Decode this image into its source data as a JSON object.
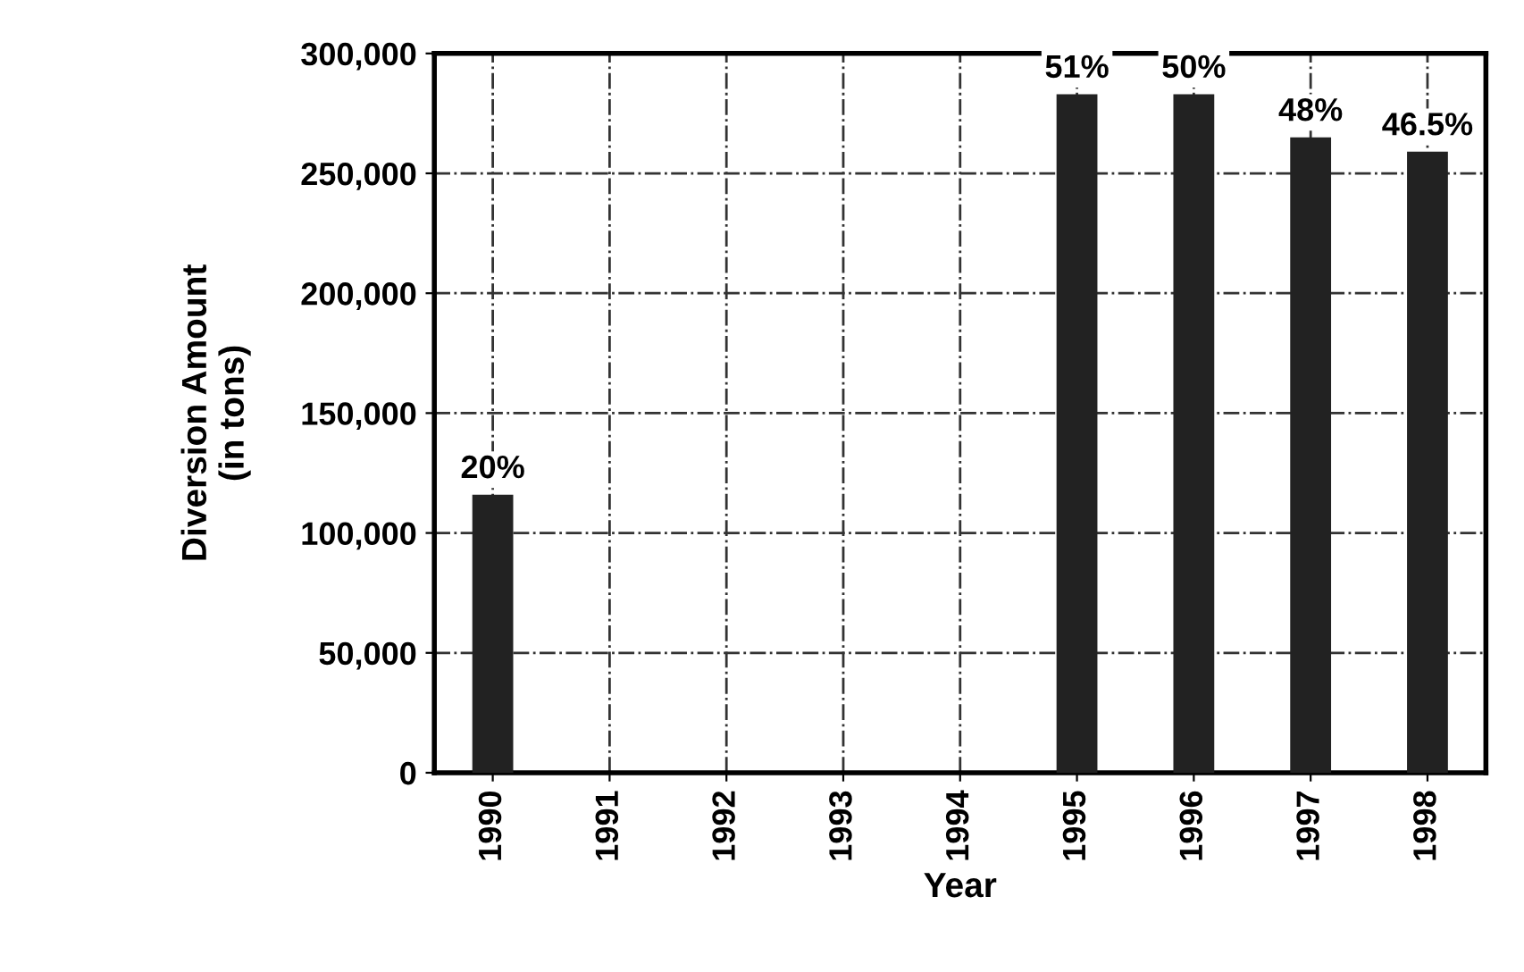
{
  "chart_data": {
    "type": "bar",
    "xlabel": "Year",
    "ylabel": "Diversion Amount\n(in tons)",
    "categories": [
      "1990",
      "1991",
      "1992",
      "1993",
      "1994",
      "1995",
      "1996",
      "1997",
      "1998"
    ],
    "values": [
      116000,
      null,
      null,
      null,
      null,
      283000,
      283000,
      265000,
      259000
    ],
    "color": "#222222",
    "ylim": [
      0,
      300000
    ],
    "yticks": [
      {
        "value": 0,
        "label": "0"
      },
      {
        "value": 50000,
        "label": "50,000"
      },
      {
        "value": 100000,
        "label": "100,000"
      },
      {
        "value": 150000,
        "label": "150,000"
      },
      {
        "value": 200000,
        "label": "200,000"
      },
      {
        "value": 250000,
        "label": "250,000"
      },
      {
        "value": 300000,
        "label": "300,000"
      }
    ],
    "grid": true,
    "annotations": [
      {
        "text": "20%",
        "x": "1990",
        "y": 116000
      },
      {
        "text": "51%",
        "x": "1995",
        "y": 283000
      },
      {
        "text": "50%",
        "x": "1996",
        "y": 283000
      },
      {
        "text": "48%",
        "x": "1997",
        "y": 265000
      },
      {
        "text": "46.5%",
        "x": "1998",
        "y": 259000
      }
    ]
  }
}
